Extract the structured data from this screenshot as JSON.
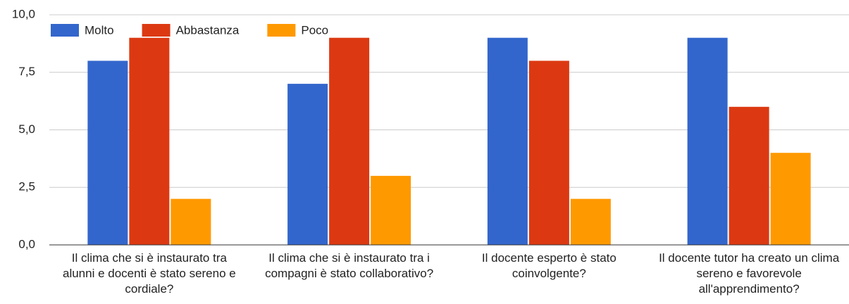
{
  "chart_data": {
    "type": "bar",
    "categories": [
      "Il clima che si è instaurato tra alunni e docenti è stato sereno e cordiale?",
      "Il clima che si è instaurato tra i compagni è stato collaborativo?",
      "Il docente esperto è stato coinvolgente?",
      "Il docente tutor ha creato un clima sereno e favorevole all'apprendimento?"
    ],
    "series": [
      {
        "name": "Molto",
        "color": "#3366cc",
        "values": [
          8,
          7,
          9,
          9
        ]
      },
      {
        "name": "Abbastanza",
        "color": "#dc3912",
        "values": [
          9,
          9,
          8,
          6
        ]
      },
      {
        "name": "Poco",
        "color": "#ff9900",
        "values": [
          2,
          3,
          2,
          4
        ]
      }
    ],
    "ylim": [
      0,
      10
    ],
    "yticks": [
      {
        "value": 0,
        "label": "0,0"
      },
      {
        "value": 2.5,
        "label": "2,5"
      },
      {
        "value": 5,
        "label": "5,0"
      },
      {
        "value": 7.5,
        "label": "7,5"
      },
      {
        "value": 10,
        "label": "10,0"
      }
    ],
    "grid": true,
    "legend": "top-left"
  }
}
